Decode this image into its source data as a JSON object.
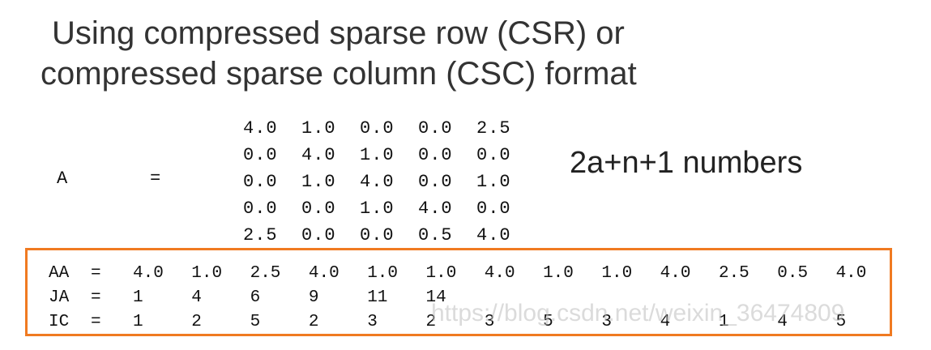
{
  "title": {
    "line1": "Using compressed sparse row (CSR) or",
    "line2": "compressed sparse column (CSC) format"
  },
  "matrix_label": "A",
  "equals": "=",
  "matrix_rows": [
    [
      "4.0",
      "1.0",
      "0.0",
      "0.0",
      "2.5"
    ],
    [
      "0.0",
      "4.0",
      "1.0",
      "0.0",
      "0.0"
    ],
    [
      "0.0",
      "1.0",
      "4.0",
      "0.0",
      "1.0"
    ],
    [
      "0.0",
      "0.0",
      "1.0",
      "4.0",
      "0.0"
    ],
    [
      "2.5",
      "0.0",
      "0.0",
      "0.5",
      "4.0"
    ]
  ],
  "note": "2a+n+1 numbers",
  "arrays": [
    {
      "label": "AA",
      "values": [
        "4.0",
        "1.0",
        "2.5",
        "4.0",
        "1.0",
        "1.0",
        "4.0",
        "1.0",
        "1.0",
        "4.0",
        "2.5",
        "0.5",
        "4.0"
      ]
    },
    {
      "label": "JA",
      "values": [
        "1",
        "4",
        "6",
        "9",
        "11",
        "14"
      ]
    },
    {
      "label": "IC",
      "values": [
        "1",
        "2",
        "5",
        "2",
        "3",
        "2",
        "3",
        "5",
        "3",
        "4",
        "1",
        "4",
        "5"
      ]
    }
  ],
  "watermark": "https://blog.csdn.net/weixin_36474809",
  "colors": {
    "highlight_border": "#f07a21"
  }
}
